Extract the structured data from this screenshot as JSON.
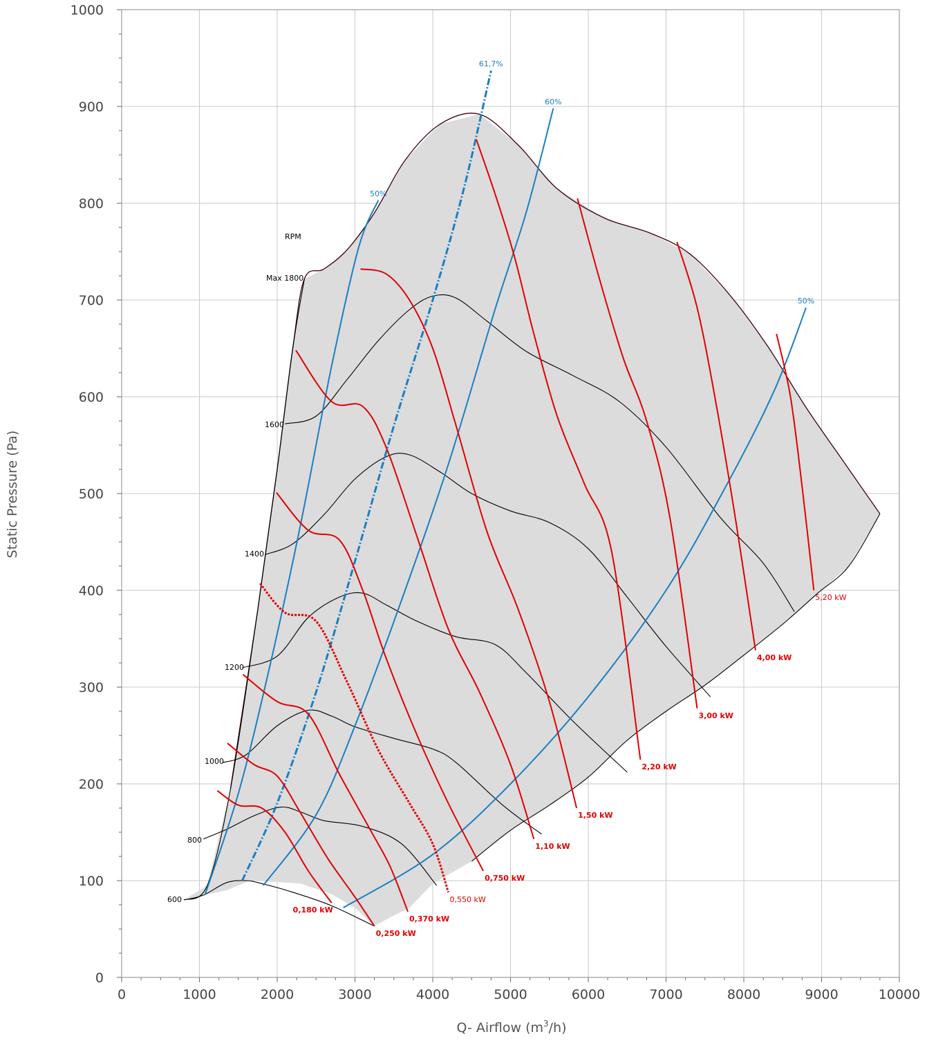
{
  "chart_data": {
    "type": "line",
    "xlabel": "Q- Airflow (m",
    "xlabel_sup": "3",
    "xlabel_tail": "/h)",
    "ylabel": "Static Pressure (Pa)",
    "xlim": [
      0,
      10000
    ],
    "ylim": [
      0,
      1000
    ],
    "x_ticks": [
      "0",
      "1000",
      "2000",
      "3000",
      "4000",
      "5000",
      "6000",
      "7000",
      "8000",
      "9000",
      "10000"
    ],
    "y_ticks": [
      "0",
      "100",
      "200",
      "300",
      "400",
      "500",
      "600",
      "700",
      "800",
      "900",
      "1000"
    ],
    "grid": true,
    "rpm_header": "RPM",
    "colors": {
      "rpm": "#000000",
      "power": "#e00000",
      "efficiency": "#1a7fc1",
      "envelope": "#3a0010",
      "fill": "#dcdcdc",
      "grid": "#c8c8c8"
    },
    "envelope": [
      [
        800,
        80
      ],
      [
        1100,
        95
      ],
      [
        1400,
        195
      ],
      [
        1750,
        380
      ],
      [
        2000,
        525
      ],
      [
        2200,
        650
      ],
      [
        2350,
        722
      ],
      [
        2600,
        732
      ],
      [
        2900,
        752
      ],
      [
        3250,
        790
      ],
      [
        3650,
        845
      ],
      [
        4100,
        882
      ],
      [
        4600,
        892
      ],
      [
        5100,
        860
      ],
      [
        5600,
        815
      ],
      [
        6200,
        785
      ],
      [
        6800,
        769
      ],
      [
        7300,
        748
      ],
      [
        7800,
        707
      ],
      [
        8300,
        653
      ],
      [
        8800,
        589
      ],
      [
        9300,
        531
      ],
      [
        9750,
        479
      ],
      [
        9350,
        425
      ],
      [
        8950,
        397
      ],
      [
        8500,
        365
      ],
      [
        8000,
        333
      ],
      [
        7500,
        302
      ],
      [
        7000,
        275
      ],
      [
        6500,
        245
      ],
      [
        6000,
        207
      ],
      [
        5500,
        178
      ],
      [
        5000,
        152
      ],
      [
        4500,
        120
      ],
      [
        4000,
        97
      ],
      [
        3700,
        72
      ],
      [
        3450,
        62
      ],
      [
        3250,
        53
      ],
      [
        3000,
        72
      ],
      [
        2700,
        86
      ],
      [
        2300,
        97
      ],
      [
        1900,
        99
      ],
      [
        1650,
        100
      ],
      [
        1350,
        90
      ],
      [
        1050,
        85
      ],
      [
        800,
        80
      ]
    ],
    "rpm_series": [
      {
        "name": "600",
        "points": [
          [
            800,
            80
          ],
          [
            1050,
            85
          ],
          [
            1350,
            98
          ],
          [
            1600,
            100
          ],
          [
            1800,
            97
          ],
          [
            2200,
            88
          ],
          [
            2700,
            74
          ],
          [
            3250,
            53
          ]
        ]
      },
      {
        "name": "800",
        "points": [
          [
            1050,
            143
          ],
          [
            1350,
            153
          ],
          [
            1700,
            167
          ],
          [
            2050,
            176
          ],
          [
            2300,
            171
          ],
          [
            2600,
            162
          ],
          [
            3100,
            156
          ],
          [
            3600,
            138
          ],
          [
            4050,
            95
          ]
        ]
      },
      {
        "name": "1000",
        "points": [
          [
            1300,
            222
          ],
          [
            1600,
            230
          ],
          [
            2000,
            260
          ],
          [
            2400,
            276
          ],
          [
            2700,
            270
          ],
          [
            3000,
            259
          ],
          [
            3500,
            247
          ],
          [
            4000,
            236
          ],
          [
            4300,
            222
          ],
          [
            4900,
            178
          ],
          [
            5400,
            148
          ]
        ]
      },
      {
        "name": "1200",
        "points": [
          [
            1550,
            320
          ],
          [
            2000,
            332
          ],
          [
            2400,
            372
          ],
          [
            2800,
            393
          ],
          [
            3100,
            397
          ],
          [
            3400,
            385
          ],
          [
            3800,
            368
          ],
          [
            4300,
            352
          ],
          [
            4800,
            344
          ],
          [
            5200,
            315
          ],
          [
            5800,
            265
          ],
          [
            6500,
            212
          ]
        ]
      },
      {
        "name": "1400",
        "points": [
          [
            1850,
            437
          ],
          [
            2200,
            448
          ],
          [
            2600,
            478
          ],
          [
            3000,
            515
          ],
          [
            3400,
            538
          ],
          [
            3700,
            540
          ],
          [
            4100,
            522
          ],
          [
            4500,
            500
          ],
          [
            5000,
            482
          ],
          [
            5500,
            470
          ],
          [
            6000,
            443
          ],
          [
            6500,
            393
          ],
          [
            7000,
            342
          ],
          [
            7570,
            290
          ]
        ]
      },
      {
        "name": "1600",
        "points": [
          [
            2100,
            572
          ],
          [
            2500,
            580
          ],
          [
            2900,
            618
          ],
          [
            3300,
            658
          ],
          [
            3700,
            690
          ],
          [
            4000,
            704
          ],
          [
            4300,
            702
          ],
          [
            4700,
            678
          ],
          [
            5200,
            647
          ],
          [
            5800,
            622
          ],
          [
            6400,
            595
          ],
          [
            7000,
            548
          ],
          [
            7700,
            475
          ],
          [
            8250,
            428
          ],
          [
            8650,
            378
          ]
        ]
      }
    ],
    "rpm_labels": {
      "max": "Max 1800",
      "r1600": "1600",
      "r1400": "1400",
      "r1200": "1200",
      "r1000": "1000",
      "r800": "800",
      "r600": "600"
    },
    "power_series": [
      {
        "name": "0,180 kW",
        "points": [
          [
            1230,
            193
          ],
          [
            1500,
            178
          ],
          [
            1800,
            175
          ],
          [
            2100,
            150
          ],
          [
            2400,
            110
          ],
          [
            2700,
            77
          ]
        ]
      },
      {
        "name": "0,250 kW",
        "points": [
          [
            1360,
            242
          ],
          [
            1700,
            220
          ],
          [
            2000,
            208
          ],
          [
            2300,
            170
          ],
          [
            2650,
            123
          ],
          [
            3000,
            83
          ],
          [
            3250,
            53
          ]
        ]
      },
      {
        "name": "0,370 kW",
        "points": [
          [
            1560,
            313
          ],
          [
            2000,
            285
          ],
          [
            2400,
            272
          ],
          [
            2800,
            210
          ],
          [
            3200,
            152
          ],
          [
            3450,
            115
          ],
          [
            3680,
            68
          ]
        ]
      },
      {
        "name": "0,550 kW",
        "points": [
          [
            1780,
            407
          ],
          [
            2100,
            377
          ],
          [
            2500,
            368
          ],
          [
            2900,
            305
          ],
          [
            3300,
            235
          ],
          [
            3700,
            180
          ],
          [
            4000,
            138
          ],
          [
            4200,
            88
          ]
        ]
      },
      {
        "name": "0,750 kW",
        "points": [
          [
            1990,
            501
          ],
          [
            2400,
            462
          ],
          [
            2800,
            452
          ],
          [
            3100,
            400
          ],
          [
            3400,
            330
          ],
          [
            3800,
            250
          ],
          [
            4200,
            180
          ],
          [
            4650,
            110
          ]
        ]
      },
      {
        "name": "1,10 kW",
        "points": [
          [
            2240,
            648
          ],
          [
            2700,
            595
          ],
          [
            3100,
            590
          ],
          [
            3400,
            548
          ],
          [
            3800,
            455
          ],
          [
            4200,
            360
          ],
          [
            4600,
            295
          ],
          [
            5000,
            220
          ],
          [
            5300,
            143
          ]
        ]
      },
      {
        "name": "1,50 kW",
        "points": [
          [
            3070,
            732
          ],
          [
            3400,
            727
          ],
          [
            3700,
            700
          ],
          [
            4000,
            650
          ],
          [
            4300,
            570
          ],
          [
            4700,
            460
          ],
          [
            5100,
            380
          ],
          [
            5500,
            285
          ],
          [
            5850,
            175
          ]
        ]
      },
      {
        "name": "2,20 kW",
        "points": [
          [
            4560,
            866
          ],
          [
            4800,
            810
          ],
          [
            5050,
            745
          ],
          [
            5300,
            665
          ],
          [
            5600,
            580
          ],
          [
            5950,
            510
          ],
          [
            6300,
            440
          ],
          [
            6670,
            225
          ]
        ]
      },
      {
        "name": "3,00 kW",
        "points": [
          [
            5860,
            805
          ],
          [
            6150,
            720
          ],
          [
            6450,
            640
          ],
          [
            6750,
            575
          ],
          [
            7050,
            475
          ],
          [
            7400,
            278
          ]
        ]
      },
      {
        "name": "4,00 kW",
        "points": [
          [
            7140,
            760
          ],
          [
            7400,
            692
          ],
          [
            7650,
            590
          ],
          [
            7900,
            470
          ],
          [
            8150,
            338
          ]
        ]
      },
      {
        "name": "5,20 kW",
        "points": [
          [
            8420,
            665
          ],
          [
            8600,
            600
          ],
          [
            8760,
            500
          ],
          [
            8900,
            400
          ]
        ]
      }
    ],
    "efficiency_series": [
      {
        "name": "50%",
        "points": [
          [
            1070,
            85
          ],
          [
            1500,
            190
          ],
          [
            1900,
            320
          ],
          [
            2300,
            468
          ],
          [
            2700,
            632
          ],
          [
            3050,
            755
          ],
          [
            3300,
            803
          ]
        ]
      },
      {
        "name": "61,7%",
        "points": [
          [
            1550,
            100
          ],
          [
            2000,
            180
          ],
          [
            2500,
            295
          ],
          [
            3000,
            430
          ],
          [
            3500,
            570
          ],
          [
            4000,
            700
          ],
          [
            4400,
            815
          ],
          [
            4750,
            937
          ]
        ]
      },
      {
        "name": "60%",
        "points": [
          [
            1820,
            95
          ],
          [
            2500,
            168
          ],
          [
            3000,
            260
          ],
          [
            3600,
            390
          ],
          [
            4200,
            530
          ],
          [
            4800,
            690
          ],
          [
            5200,
            790
          ],
          [
            5550,
            898
          ]
        ]
      },
      {
        "name": "50%",
        "points": [
          [
            2850,
            72
          ],
          [
            4000,
            127
          ],
          [
            5000,
            200
          ],
          [
            6000,
            290
          ],
          [
            7000,
            400
          ],
          [
            7800,
            512
          ],
          [
            8400,
            608
          ],
          [
            8800,
            692
          ]
        ]
      }
    ],
    "efficiency_labels": [
      "50%",
      "61,7%",
      "60%",
      "50%"
    ]
  }
}
